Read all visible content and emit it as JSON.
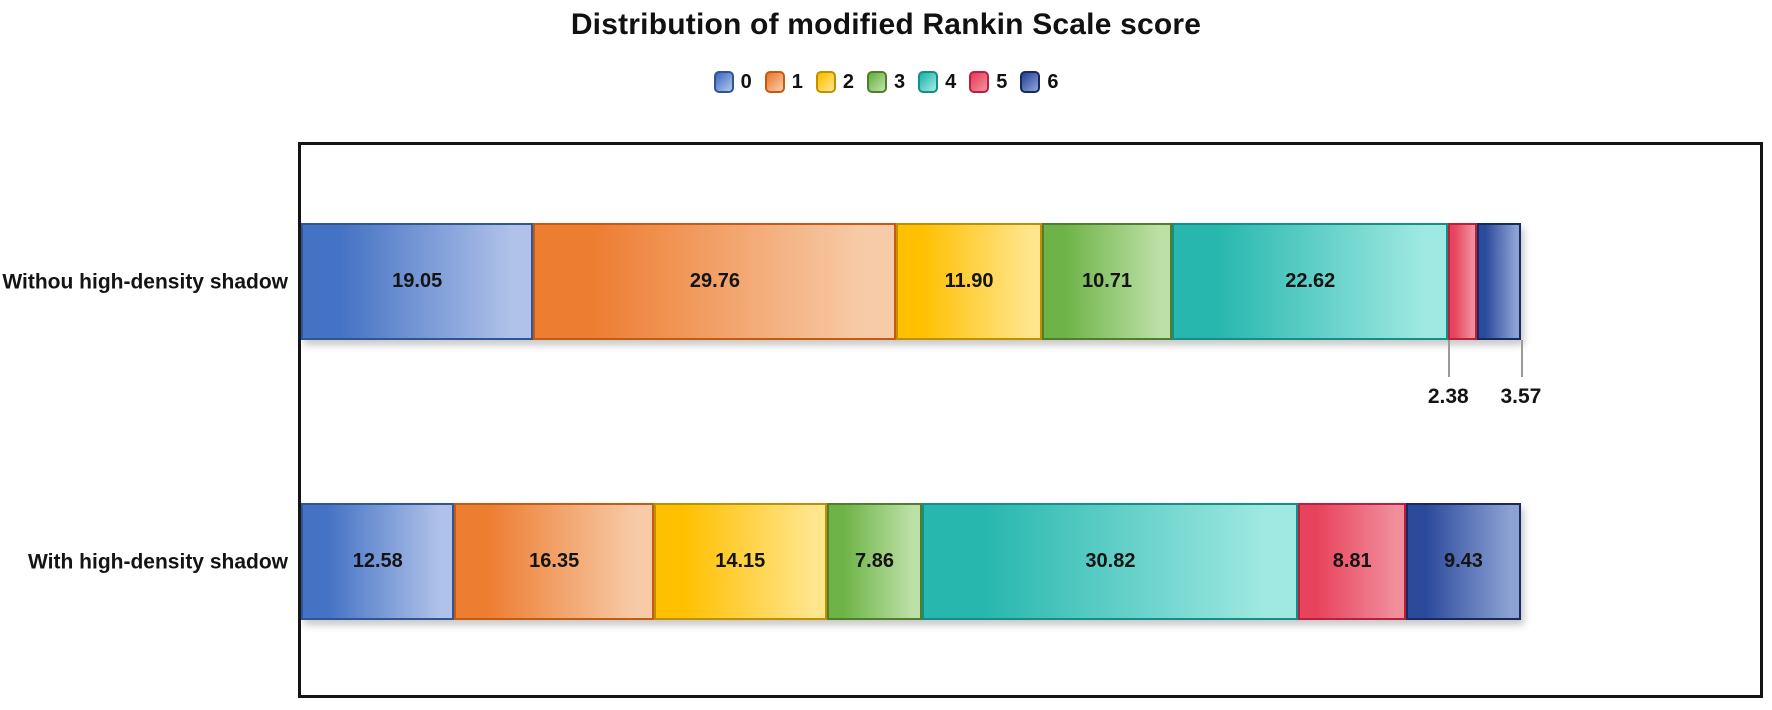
{
  "title": "Distribution of modified Rankin Scale score",
  "chart_data": {
    "type": "bar",
    "orientation": "horizontal",
    "stacked": true,
    "title": "Distribution of modified Rankin Scale score",
    "grid": false,
    "x_range": [
      0,
      100
    ],
    "legend_position": "top",
    "categories": [
      "Withou high-density shadow",
      "With high-density shadow"
    ],
    "series": [
      {
        "name": "0",
        "values": [
          19.05,
          12.58
        ],
        "labels": [
          "19.05",
          "12.58"
        ],
        "fill_start": "#4472C4",
        "fill_end": "#B0C2E9",
        "border": "#2F5597"
      },
      {
        "name": "1",
        "values": [
          29.76,
          16.35
        ],
        "labels": [
          "29.76",
          "16.35"
        ],
        "fill_start": "#ED7D31",
        "fill_end": "#F7CBA8",
        "border": "#C55A11"
      },
      {
        "name": "2",
        "values": [
          11.9,
          14.15
        ],
        "labels": [
          "11.90",
          "14.15"
        ],
        "fill_start": "#FFC000",
        "fill_end": "#FFE58C",
        "border": "#BF9000"
      },
      {
        "name": "3",
        "values": [
          10.71,
          7.86
        ],
        "labels": [
          "10.71",
          "7.86"
        ],
        "fill_start": "#6EB347",
        "fill_end": "#BCE0A6",
        "border": "#507E2A"
      },
      {
        "name": "4",
        "values": [
          22.62,
          30.82
        ],
        "labels": [
          "22.62",
          "30.82"
        ],
        "fill_start": "#27B7AE",
        "fill_end": "#9FE9E2",
        "border": "#148F88"
      },
      {
        "name": "5",
        "values": [
          2.38,
          8.81
        ],
        "labels": [
          "2.38",
          "8.81"
        ],
        "fill_start": "#E8435C",
        "fill_end": "#F08E9C",
        "border": "#BB1F3F"
      },
      {
        "name": "6",
        "values": [
          3.57,
          9.43
        ],
        "labels": [
          "3.57",
          "9.43"
        ],
        "fill_start": "#2C4A9C",
        "fill_end": "#8CA2D3",
        "border": "#17295E"
      }
    ],
    "outside_labels": [
      {
        "category": 0,
        "series": [
          5,
          6
        ],
        "labels": [
          "2.38",
          "3.57"
        ]
      }
    ]
  }
}
